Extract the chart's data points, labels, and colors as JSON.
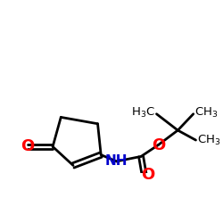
{
  "bg": "#ffffff",
  "bc": "#000000",
  "Oc": "#ff0000",
  "Nc": "#0000cc",
  "lw": 2.0,
  "figsize": [
    2.5,
    2.5
  ],
  "dpi": 100,
  "xlim": [
    0.0,
    1.0
  ],
  "ylim": [
    0.28,
    0.88
  ]
}
